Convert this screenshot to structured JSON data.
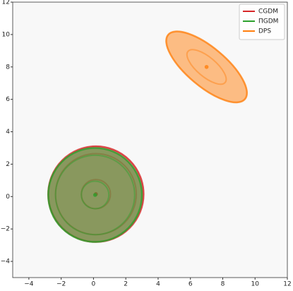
{
  "chart_data": {
    "type": "ellipse",
    "xlim": [
      -5,
      12
    ],
    "ylim": [
      -5,
      12
    ],
    "xticks": [
      {
        "value": -4,
        "label": "−4"
      },
      {
        "value": -2,
        "label": "−2"
      },
      0,
      2,
      4,
      6,
      8,
      10,
      12
    ],
    "yticks": [
      {
        "value": -4,
        "label": "−4"
      },
      {
        "value": -2,
        "label": "−2"
      },
      0,
      2,
      4,
      6,
      8,
      10,
      12
    ],
    "legend": "upper right",
    "series": [
      {
        "name": "CGDM",
        "color": "#d62728",
        "x": 0.15,
        "y": 0.15,
        "contours": [
          {
            "rx": 2.95,
            "ry": 2.95,
            "angle": 0
          },
          {
            "rx": 2.5,
            "ry": 2.5,
            "angle": 0
          },
          {
            "rx": 0.9,
            "ry": 0.9,
            "angle": 0
          }
        ]
      },
      {
        "name": "ΠGDM",
        "color": "#2ca02c",
        "x": 0.1,
        "y": 0.1,
        "contours": [
          {
            "rx": 2.9,
            "ry": 2.9,
            "angle": 0
          },
          {
            "rx": 2.45,
            "ry": 2.45,
            "angle": 0
          },
          {
            "rx": 0.85,
            "ry": 0.85,
            "angle": 0
          }
        ]
      },
      {
        "name": "DPS",
        "color": "#ff7f0e",
        "x": 7,
        "y": 8,
        "contours": [
          {
            "rx": 3.1,
            "ry": 1.2,
            "angle": -40
          },
          {
            "rx": 1.5,
            "ry": 0.6,
            "angle": -40
          }
        ]
      }
    ]
  }
}
